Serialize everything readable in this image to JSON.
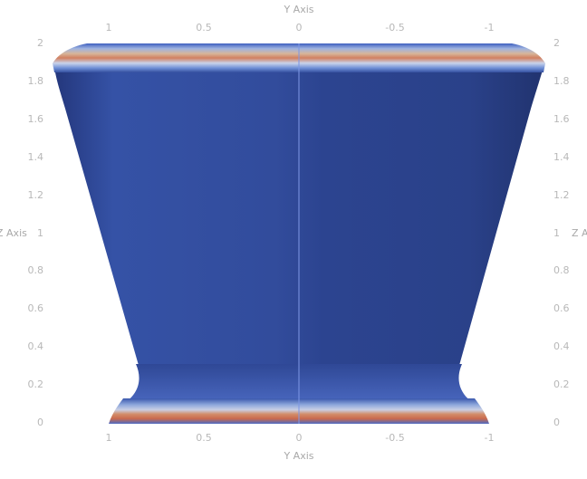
{
  "view": {
    "y_axis_title": "Y Axis",
    "z_axis_title": "Z Axis",
    "z_axis_title_right": "Z A",
    "y_ticks": [
      "1",
      "0.5",
      "0",
      "-0.5",
      "-1"
    ],
    "z_ticks": [
      "2",
      "1.8",
      "1.6",
      "1.4",
      "1.2",
      "1",
      "0.8",
      "0.6",
      "0.4",
      "0.2",
      "0"
    ]
  },
  "colors": {
    "surface_main": "#2e4492",
    "surface_light": "#3b57b0",
    "surface_dark": "#25377a",
    "band_orange": "#d9865f",
    "band_red": "#c96a4e",
    "band_light": "#b9cbe8",
    "axis_line": "#6f8de0",
    "background": "#ffffff"
  }
}
